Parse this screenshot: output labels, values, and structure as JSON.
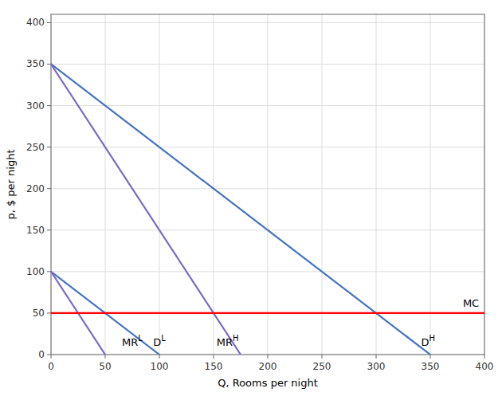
{
  "chart_data": {
    "type": "line",
    "title": "",
    "xlabel": "Q, Rooms per night",
    "ylabel": "p, $ per night",
    "xlim": [
      0,
      400
    ],
    "ylim": [
      0,
      410
    ],
    "xticks": [
      0,
      50,
      100,
      150,
      200,
      250,
      300,
      350,
      400
    ],
    "yticks": [
      0,
      50,
      100,
      150,
      200,
      250,
      300,
      350,
      400
    ],
    "grid": true,
    "series": [
      {
        "color": "#4472C4",
        "x": [
          0,
          100
        ],
        "values": [
          100,
          0
        ]
      },
      {
        "color": "#4472C4",
        "x": [
          0,
          350
        ],
        "values": [
          350,
          0
        ]
      },
      {
        "color": "#7B68C8",
        "x": [
          0,
          50
        ],
        "values": [
          100,
          0
        ]
      },
      {
        "color": "#7B68C8",
        "x": [
          0,
          175
        ],
        "values": [
          350,
          0
        ]
      },
      {
        "color": "#FF0000",
        "x": [
          0,
          400
        ],
        "values": [
          50,
          50
        ]
      }
    ],
    "annotations": [
      {
        "text": "MR",
        "sup": "L",
        "x": 75,
        "y": 8
      },
      {
        "text": "D",
        "sup": "L",
        "x": 100,
        "y": 8
      },
      {
        "text": "MR",
        "sup": "H",
        "x": 163,
        "y": 8
      },
      {
        "text": "D",
        "sup": "H",
        "x": 348,
        "y": 8
      },
      {
        "text": "MC",
        "x": 395,
        "y": 55
      }
    ]
  }
}
